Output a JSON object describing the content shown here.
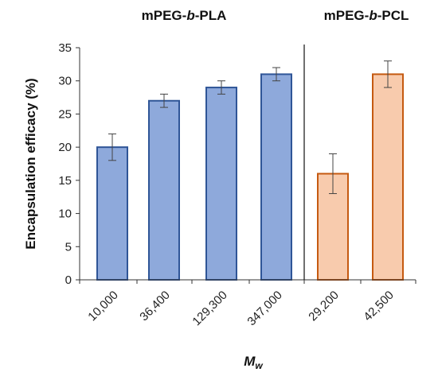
{
  "chart_data": {
    "type": "bar",
    "ylabel": "Encapsulation efficacy (%)",
    "xlabel": "M",
    "xlabel_sub": "w",
    "ylim": [
      0,
      35
    ],
    "yticks": [
      0,
      5,
      10,
      15,
      20,
      25,
      30,
      35
    ],
    "groups": [
      {
        "title_parts": [
          "mPEG-",
          "b",
          "-PLA"
        ],
        "fill": "#8EA9DB",
        "stroke": "#2F5597",
        "categories": [
          "10,000",
          "36,400",
          "129,300",
          "347,000"
        ],
        "values": [
          20,
          27,
          29,
          31
        ],
        "errors": [
          2,
          1,
          1,
          1
        ]
      },
      {
        "title_parts": [
          "mPEG-",
          "b",
          "-PCL"
        ],
        "fill": "#F8CBAD",
        "stroke": "#C55A11",
        "categories": [
          "29,200",
          "42,500"
        ],
        "values": [
          16,
          31
        ],
        "errors": [
          3,
          2
        ]
      }
    ]
  }
}
